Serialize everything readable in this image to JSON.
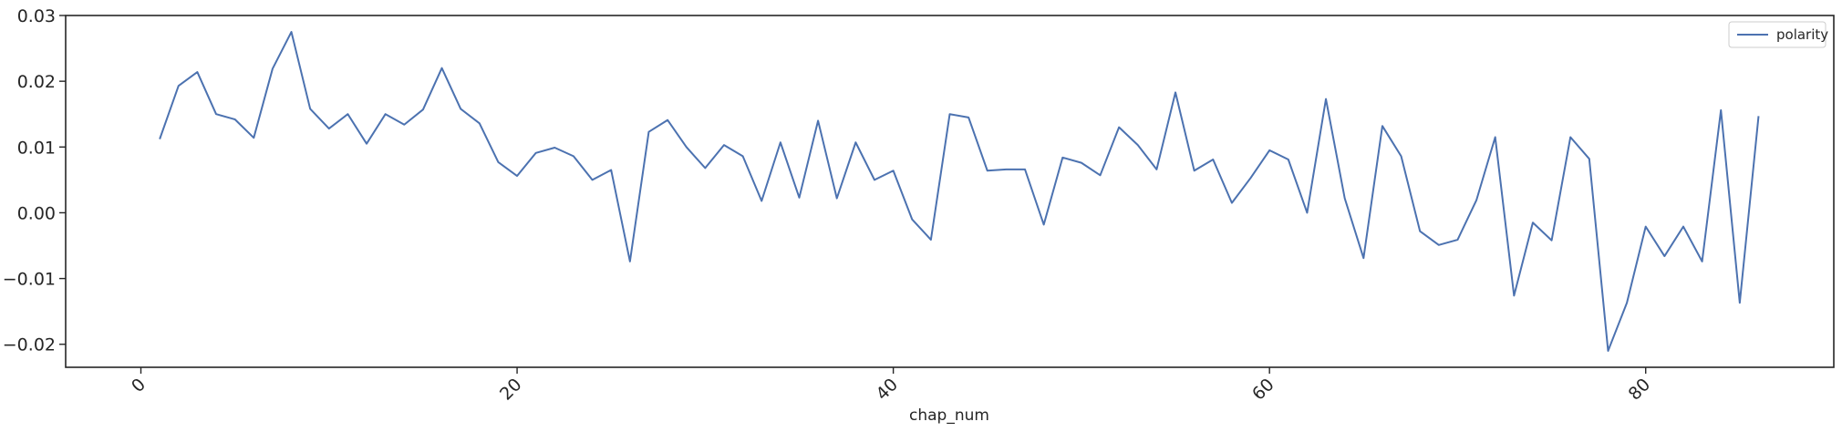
{
  "chart_data": {
    "type": "line",
    "title": "",
    "xlabel": "chap_num",
    "ylabel": "",
    "xlim": [
      -4,
      90
    ],
    "ylim": [
      -0.0235,
      0.03
    ],
    "x_ticks": [
      0,
      20,
      40,
      60,
      80
    ],
    "x_tick_labels": [
      "0",
      "20",
      "40",
      "60",
      "80"
    ],
    "y_ticks": [
      -0.02,
      -0.01,
      0.0,
      0.01,
      0.02,
      0.03
    ],
    "y_tick_labels": [
      "−0.02",
      "−0.01",
      "0.00",
      "0.01",
      "0.02",
      "0.03"
    ],
    "x_tick_rotation": 45,
    "grid": false,
    "legend_position": "top-right",
    "line_color": "#4c72b0",
    "series": [
      {
        "name": "polarity",
        "x": [
          1,
          2,
          3,
          4,
          5,
          6,
          7,
          8,
          9,
          10,
          11,
          12,
          13,
          14,
          15,
          16,
          17,
          18,
          19,
          20,
          21,
          22,
          23,
          24,
          25,
          26,
          27,
          28,
          29,
          30,
          31,
          32,
          33,
          34,
          35,
          36,
          37,
          38,
          39,
          40,
          41,
          42,
          43,
          44,
          45,
          46,
          47,
          48,
          49,
          50,
          51,
          52,
          53,
          54,
          55,
          56,
          57,
          58,
          59,
          60,
          61,
          62,
          63,
          64,
          65,
          66,
          67,
          68,
          69,
          70,
          71,
          72,
          73,
          74,
          75,
          76,
          77,
          78,
          79,
          80,
          81,
          82,
          83,
          84,
          85,
          86
        ],
        "values": [
          0.0112,
          0.0193,
          0.0214,
          0.015,
          0.0142,
          0.0114,
          0.0219,
          0.0275,
          0.0158,
          0.0128,
          0.015,
          0.0105,
          0.015,
          0.0134,
          0.0157,
          0.022,
          0.0158,
          0.0136,
          0.0077,
          0.0056,
          0.0091,
          0.0099,
          0.0086,
          0.005,
          0.0065,
          -0.0074,
          0.0123,
          0.0141,
          0.01,
          0.0068,
          0.0103,
          0.0086,
          0.0018,
          0.0107,
          0.0023,
          0.014,
          0.0022,
          0.0107,
          0.005,
          0.0064,
          -0.001,
          -0.0041,
          0.015,
          0.0145,
          0.0064,
          0.0066,
          0.0066,
          -0.0018,
          0.0084,
          0.0076,
          0.0057,
          0.013,
          0.0103,
          0.0066,
          0.0183,
          0.0064,
          0.0081,
          0.0015,
          0.0053,
          0.0095,
          0.0081,
          0.0,
          0.0173,
          0.0022,
          -0.0069,
          0.0132,
          0.0086,
          -0.0028,
          -0.0049,
          -0.0041,
          0.0019,
          0.0115,
          -0.0126,
          -0.0015,
          -0.0042,
          0.0115,
          0.0082,
          -0.021,
          -0.0137,
          -0.0021,
          -0.0066,
          -0.0021,
          -0.0074,
          0.0156,
          -0.0137,
          0.0147
        ]
      }
    ]
  }
}
